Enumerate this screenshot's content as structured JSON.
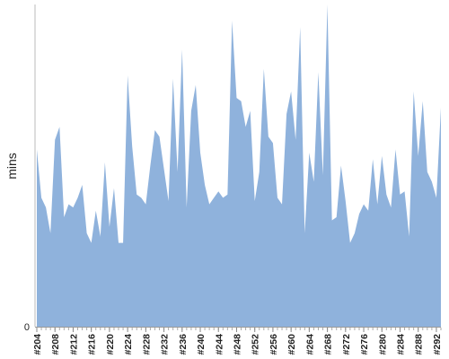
{
  "chart_data": {
    "type": "area",
    "title": "",
    "xlabel": "",
    "ylabel": "mins",
    "grid": false,
    "legend": "none",
    "color": "#8fb2dc",
    "y_ticks": [
      "0"
    ],
    "ylim": [
      0,
      1
    ],
    "x": [
      "#204",
      "#205",
      "#206",
      "#207",
      "#208",
      "#209",
      "#210",
      "#211",
      "#212",
      "#213",
      "#214",
      "#215",
      "#216",
      "#217",
      "#218",
      "#219",
      "#220",
      "#221",
      "#222",
      "#223",
      "#224",
      "#225",
      "#226",
      "#227",
      "#228",
      "#229",
      "#230",
      "#231",
      "#232",
      "#233",
      "#234",
      "#235",
      "#236",
      "#237",
      "#238",
      "#239",
      "#240",
      "#241",
      "#242",
      "#243",
      "#244",
      "#245",
      "#246",
      "#247",
      "#248",
      "#249",
      "#250",
      "#251",
      "#252",
      "#253",
      "#254",
      "#255",
      "#256",
      "#257",
      "#258",
      "#259",
      "#260",
      "#261",
      "#262",
      "#263",
      "#264",
      "#265",
      "#266",
      "#267",
      "#268",
      "#269",
      "#270",
      "#271",
      "#272",
      "#273",
      "#274",
      "#275",
      "#276",
      "#277",
      "#278",
      "#279",
      "#280",
      "#281",
      "#282",
      "#283",
      "#284",
      "#285",
      "#286",
      "#287",
      "#288",
      "#289",
      "#290",
      "#291",
      "#292",
      "#293"
    ],
    "tick_labels": [
      "#204",
      "#208",
      "#212",
      "#216",
      "#220",
      "#224",
      "#228",
      "#232",
      "#236",
      "#240",
      "#244",
      "#248",
      "#252",
      "#256",
      "#260",
      "#264",
      "#268",
      "#272",
      "#276",
      "#280",
      "#284",
      "#288",
      "#292"
    ],
    "values": [
      0.55,
      0.4,
      0.37,
      0.29,
      0.58,
      0.62,
      0.34,
      0.38,
      0.37,
      0.4,
      0.44,
      0.29,
      0.26,
      0.36,
      0.28,
      0.51,
      0.31,
      0.43,
      0.26,
      0.26,
      0.78,
      0.56,
      0.41,
      0.4,
      0.38,
      0.5,
      0.61,
      0.59,
      0.49,
      0.39,
      0.77,
      0.48,
      0.86,
      0.37,
      0.67,
      0.75,
      0.54,
      0.44,
      0.38,
      0.4,
      0.42,
      0.4,
      0.41,
      0.95,
      0.71,
      0.7,
      0.62,
      0.67,
      0.39,
      0.48,
      0.8,
      0.59,
      0.57,
      0.4,
      0.38,
      0.66,
      0.73,
      0.58,
      0.93,
      0.29,
      0.54,
      0.45,
      0.79,
      0.47,
      1.0,
      0.33,
      0.34,
      0.5,
      0.39,
      0.26,
      0.29,
      0.35,
      0.38,
      0.36,
      0.52,
      0.38,
      0.53,
      0.41,
      0.37,
      0.55,
      0.41,
      0.42,
      0.28,
      0.73,
      0.53,
      0.7,
      0.48,
      0.45,
      0.4,
      0.68
    ]
  }
}
